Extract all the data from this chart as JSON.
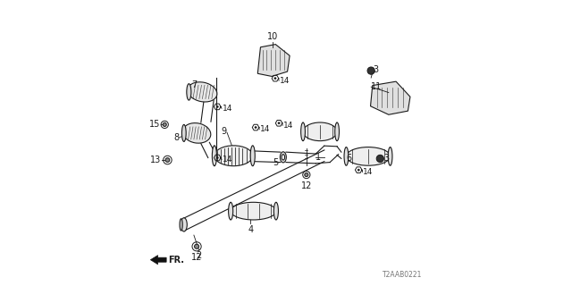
{
  "bg_color": "#ffffff",
  "line_color": "#1a1a1a",
  "diagram_code": "T2AAB0221",
  "label_fontsize": 7
}
